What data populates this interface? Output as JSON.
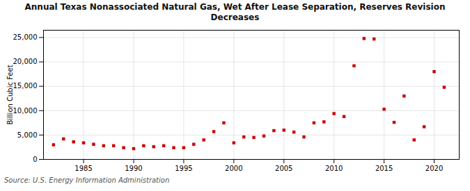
{
  "chart_data": {
    "type": "scatter",
    "title": "Annual Texas Nonassociated Natural Gas, Wet After Lease Separation, Reserves Revision\nDecreases",
    "ylabel": "Billion Cubic Feet",
    "source": "Source: U.S. Energy Information Administration",
    "x": [
      1982,
      1983,
      1984,
      1985,
      1986,
      1987,
      1988,
      1989,
      1990,
      1991,
      1992,
      1993,
      1994,
      1995,
      1996,
      1997,
      1998,
      1999,
      2000,
      2001,
      2002,
      2003,
      2004,
      2005,
      2006,
      2007,
      2008,
      2009,
      2010,
      2011,
      2012,
      2013,
      2014,
      2015,
      2016,
      2017,
      2018,
      2019,
      2020,
      2021
    ],
    "values": [
      3000,
      4200,
      3600,
      3400,
      3100,
      2800,
      2800,
      2400,
      2200,
      2800,
      2600,
      2800,
      2400,
      2400,
      3100,
      4000,
      5700,
      7500,
      3400,
      4600,
      4500,
      4800,
      5900,
      6000,
      5600,
      4600,
      7500,
      7700,
      9400,
      8800,
      19200,
      24800,
      24700,
      10300,
      7600,
      13000,
      4000,
      6700,
      18000,
      14800
    ],
    "color": "#cc0000",
    "marker": "square",
    "xlim": [
      1981,
      2022.5
    ],
    "xticks": [
      1985,
      1990,
      1995,
      2000,
      2005,
      2010,
      2015,
      2020
    ],
    "ylim": [
      0,
      26500
    ],
    "yticks": [
      0,
      {
        "value": 5000,
        "label": "5,000"
      },
      {
        "value": 10000,
        "label": "10,000"
      },
      {
        "value": 15000,
        "label": "15,000"
      },
      {
        "value": 20000,
        "label": "20,000"
      },
      {
        "value": 25000,
        "label": "25,000"
      }
    ],
    "grid": true
  }
}
